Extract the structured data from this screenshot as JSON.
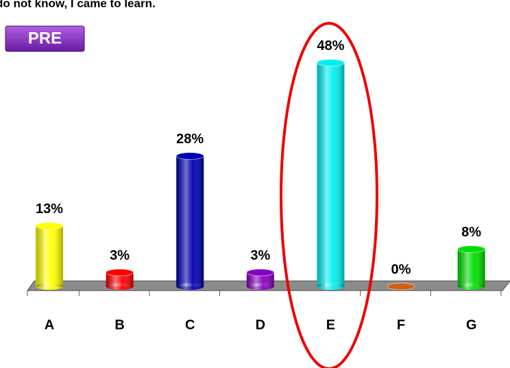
{
  "chart_data": {
    "type": "bar",
    "title": "do not know, I came to learn.",
    "badge": "PRE",
    "categories": [
      "A",
      "B",
      "C",
      "D",
      "E",
      "F",
      "G"
    ],
    "values": [
      13,
      3,
      28,
      3,
      48,
      0,
      8
    ],
    "value_labels": [
      "13%",
      "3%",
      "28%",
      "3%",
      "48%",
      "0%",
      "8%"
    ],
    "colors": [
      "#ffff00",
      "#ff0000",
      "#0000b0",
      "#8a00c0",
      "#00f0f0",
      "#d06010",
      "#00dd00"
    ]
  }
}
